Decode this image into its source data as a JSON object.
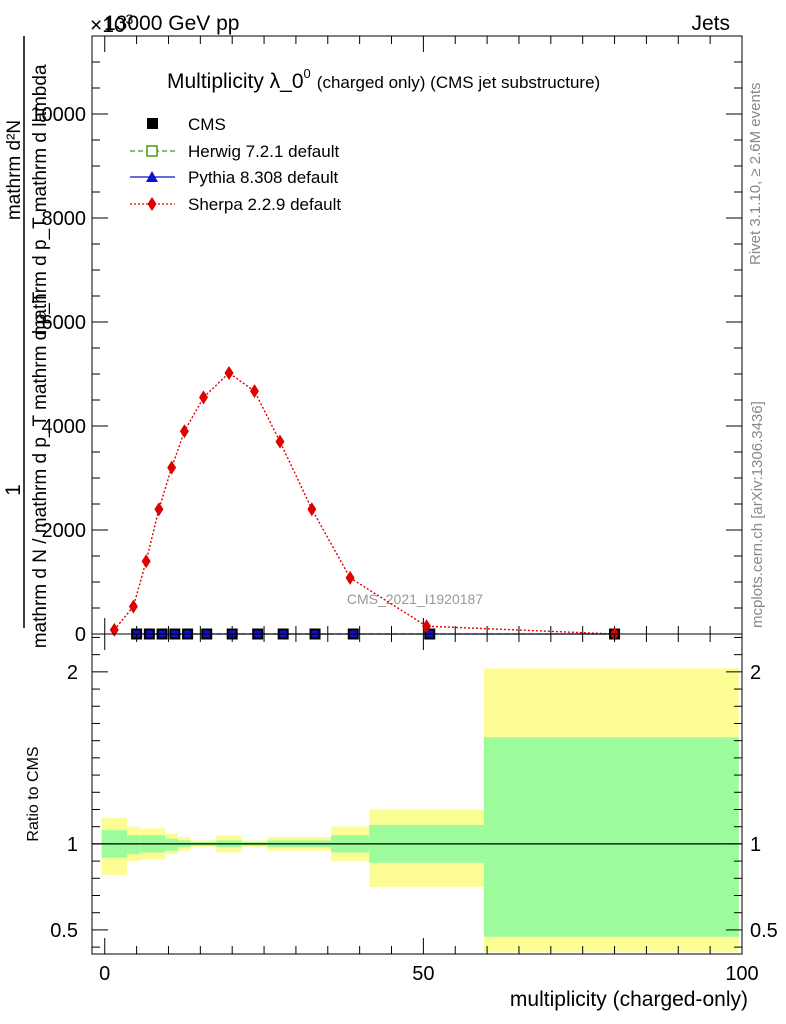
{
  "header": {
    "left": "13000 GeV pp",
    "right": "Jets",
    "exponent_label": "×10",
    "exponent_power": "3"
  },
  "side_labels": {
    "rivet": "Rivet 3.1.10, ≥ 2.6M events",
    "mcplots": "mcplots.cern.ch [arXiv:1306.3436]"
  },
  "chart_data": [
    {
      "type": "line",
      "title": "Multiplicity λ_0",
      "title_sup": "0",
      "title_suffix": "(charged only) (CMS jet substructure)",
      "watermark": "CMS_2021_I1920187",
      "ylabel_numerator": "1",
      "ylabel_numerator_lines": [
        "mathrm d²N",
        "mathrm d p_T mathrm d lambda"
      ],
      "ylabel_denominator": "mathrm d N / mathrm d p_T mathrm d p_T",
      "xlim": [
        -2,
        100
      ],
      "ylim": [
        0,
        11500
      ],
      "y_ticks": [
        0,
        2000,
        4000,
        6000,
        8000,
        10000
      ],
      "y_tick_labels": [
        "0",
        "2000",
        "4000",
        "6000",
        "8000",
        "10000"
      ],
      "legend_position": "top-left",
      "series": [
        {
          "name": "CMS",
          "color": "#000000",
          "marker": "square",
          "x": [
            5,
            7,
            9,
            11,
            13,
            16,
            20,
            24,
            28,
            33,
            39,
            51,
            80
          ],
          "y": [
            0,
            0,
            0,
            0,
            0,
            0,
            0,
            0,
            0,
            0,
            0,
            0,
            0
          ]
        },
        {
          "name": "Herwig 7.2.1 default",
          "color": "#4a9a1a",
          "marker": "open-square",
          "line": "dashed",
          "x": [
            5,
            7,
            9,
            11,
            13,
            16,
            20,
            24,
            28,
            33,
            39,
            51,
            80
          ],
          "y": [
            0,
            0,
            0,
            0,
            0,
            0,
            0,
            0,
            0,
            0,
            0,
            0,
            0
          ]
        },
        {
          "name": "Pythia 8.308 default",
          "color": "#1010cc",
          "marker": "triangle",
          "line": "solid",
          "x": [
            5,
            7,
            9,
            11,
            13,
            16,
            20,
            24,
            28,
            33,
            39,
            51,
            80
          ],
          "y": [
            0,
            0,
            0,
            0,
            0,
            0,
            0,
            0,
            0,
            0,
            0,
            0,
            0
          ]
        },
        {
          "name": "Sherpa 2.2.9 default",
          "color": "#e00000",
          "marker": "diamond",
          "line": "dotted",
          "x": [
            1.5,
            4.5,
            6.5,
            8.5,
            10.5,
            12.5,
            15.5,
            19.5,
            23.5,
            27.5,
            32.5,
            38.5,
            50.5,
            80
          ],
          "y": [
            80,
            530,
            1400,
            2400,
            3200,
            3900,
            4550,
            5020,
            4670,
            3700,
            2400,
            1080,
            150,
            0
          ]
        }
      ]
    },
    {
      "type": "area",
      "ylabel": "Ratio to CMS",
      "xlabel": "multiplicity (charged-only)",
      "xlim": [
        -2,
        100
      ],
      "ylim": [
        0.36,
        2.22
      ],
      "x_ticks": [
        0,
        50,
        100
      ],
      "x_tick_labels": [
        "0",
        "50",
        "100"
      ],
      "y_ticks": [
        0.5,
        1,
        2
      ],
      "y_tick_labels": [
        "0.5",
        "1",
        "2"
      ],
      "reference": 1,
      "band_colors": {
        "stat": "#9cfc9c",
        "total": "#fdfd96"
      },
      "bins": [
        {
          "lo": -0.5,
          "hi": 3.5,
          "stat": [
            0.92,
            1.08
          ],
          "total": [
            0.82,
            1.15
          ]
        },
        {
          "lo": 3.5,
          "hi": 5.5,
          "stat": [
            0.94,
            1.05
          ],
          "total": [
            0.9,
            1.1
          ]
        },
        {
          "lo": 5.5,
          "hi": 9.5,
          "stat": [
            0.95,
            1.05
          ],
          "total": [
            0.91,
            1.09
          ]
        },
        {
          "lo": 9.5,
          "hi": 11.5,
          "stat": [
            0.96,
            1.03
          ],
          "total": [
            0.94,
            1.06
          ]
        },
        {
          "lo": 11.5,
          "hi": 13.5,
          "stat": [
            0.98,
            1.02
          ],
          "total": [
            0.96,
            1.04
          ]
        },
        {
          "lo": 13.5,
          "hi": 17.5,
          "stat": [
            0.99,
            1.01
          ],
          "total": [
            0.98,
            1.02
          ]
        },
        {
          "lo": 17.5,
          "hi": 21.5,
          "stat": [
            0.98,
            1.02
          ],
          "total": [
            0.95,
            1.05
          ]
        },
        {
          "lo": 21.5,
          "hi": 25.5,
          "stat": [
            0.99,
            1.01
          ],
          "total": [
            0.98,
            1.02
          ]
        },
        {
          "lo": 25.5,
          "hi": 35.5,
          "stat": [
            0.98,
            1.02
          ],
          "total": [
            0.96,
            1.04
          ]
        },
        {
          "lo": 35.5,
          "hi": 41.5,
          "stat": [
            0.95,
            1.05
          ],
          "total": [
            0.9,
            1.1
          ]
        },
        {
          "lo": 41.5,
          "hi": 59.5,
          "stat": [
            0.89,
            1.11
          ],
          "total": [
            0.75,
            1.2
          ]
        },
        {
          "lo": 59.5,
          "hi": 99.5,
          "stat": [
            0.46,
            1.62
          ],
          "total": [
            0.37,
            2.02
          ]
        }
      ]
    }
  ]
}
